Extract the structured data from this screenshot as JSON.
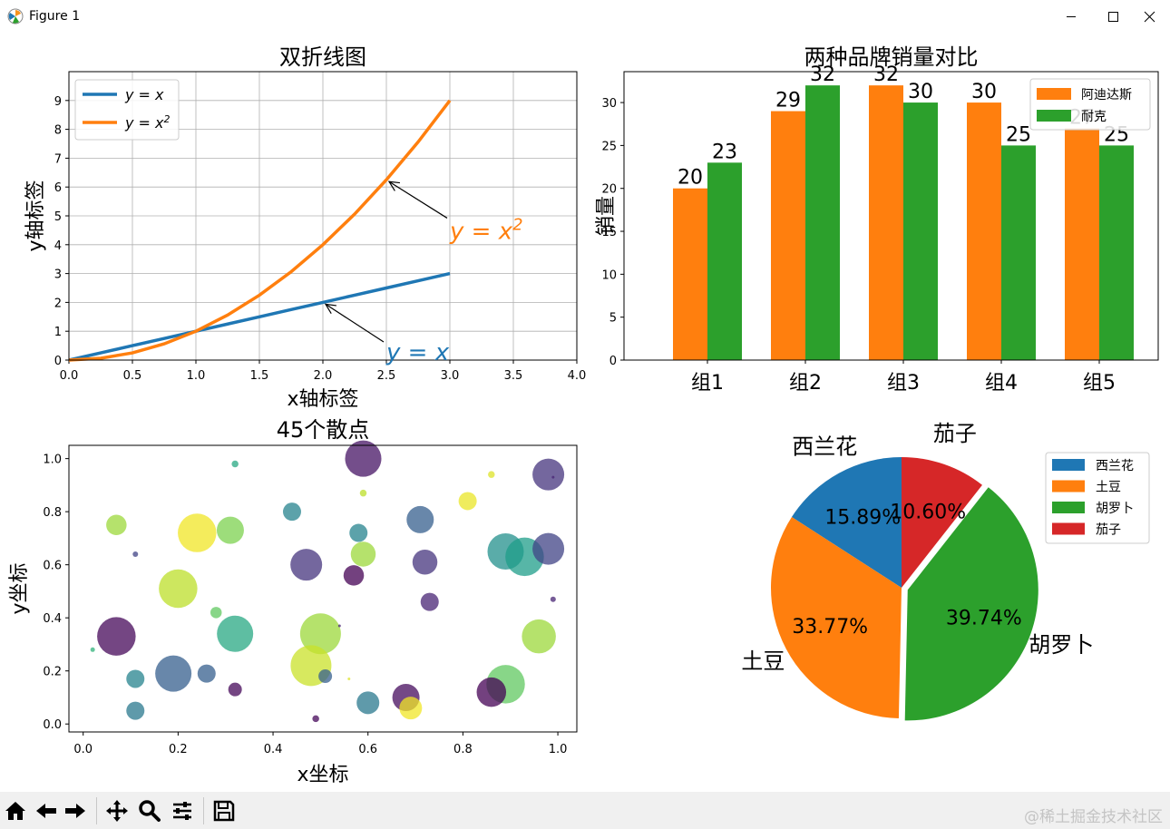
{
  "window": {
    "title": "Figure 1",
    "icons": [
      "matplotlib-logo-icon",
      "minimize-icon",
      "maximize-icon",
      "close-icon"
    ]
  },
  "toolbar": {
    "icons": [
      "home-icon",
      "back-icon",
      "forward-icon",
      "pan-icon",
      "zoom-icon",
      "configure-subplots-icon",
      "save-icon"
    ]
  },
  "watermark": "@稀土掘金技术社区",
  "chart_data": [
    {
      "type": "line",
      "title": "双折线图",
      "xlabel": "x轴标签",
      "ylabel": "y轴标签",
      "xlim": [
        0,
        4
      ],
      "ylim": [
        0,
        10
      ],
      "xticks": [
        "0.0",
        "0.5",
        "1.0",
        "1.5",
        "2.0",
        "2.5",
        "3.0",
        "3.5",
        "4.0"
      ],
      "yticks": [
        "0",
        "1",
        "2",
        "3",
        "4",
        "5",
        "6",
        "7",
        "8",
        "9"
      ],
      "grid": true,
      "legend": "top-left",
      "x": [
        0,
        0.25,
        0.5,
        0.75,
        1,
        1.25,
        1.5,
        1.75,
        2,
        2.25,
        2.5,
        2.75,
        3
      ],
      "series": [
        {
          "name": "y = x",
          "legend_label": "y = x",
          "color": "#1f77b4",
          "values": [
            0,
            0.25,
            0.5,
            0.75,
            1,
            1.25,
            1.5,
            1.75,
            2,
            2.25,
            2.5,
            2.75,
            3
          ]
        },
        {
          "name": "y = x²",
          "legend_label": "y = x²",
          "color": "#ff7f0e",
          "values": [
            0,
            0.0625,
            0.25,
            0.5625,
            1,
            1.5625,
            2.25,
            3.0625,
            4,
            5.0625,
            6.25,
            7.5625,
            9
          ]
        }
      ],
      "annotations": [
        {
          "text": "y = x",
          "color": "#1f77b4",
          "point": [
            2,
            2
          ],
          "text_at": [
            2.5,
            0
          ]
        },
        {
          "text": "y = x²",
          "color": "#ff7f0e",
          "point": [
            2.5,
            6.25
          ],
          "text_at": [
            3,
            4.2
          ]
        }
      ]
    },
    {
      "type": "bar",
      "title": "两种品牌销量对比",
      "xlabel": "",
      "ylabel": "销量",
      "ylim": [
        0,
        33.6
      ],
      "yticks": [
        "0",
        "5",
        "10",
        "15",
        "20",
        "25",
        "30"
      ],
      "categories": [
        "组1",
        "组2",
        "组3",
        "组4",
        "组5"
      ],
      "legend": "top-right",
      "series": [
        {
          "name": "阿迪达斯",
          "color": "#ff7f0e",
          "values": [
            20,
            29,
            32,
            30,
            27
          ]
        },
        {
          "name": "耐克",
          "color": "#2ca02c",
          "values": [
            23,
            32,
            30,
            25,
            25
          ]
        }
      ]
    },
    {
      "type": "scatter",
      "title": "45个散点",
      "xlabel": "x坐标",
      "ylabel": "y坐标",
      "xlim": [
        -0.03,
        1.04
      ],
      "ylim": [
        -0.03,
        1.05
      ],
      "xticks": [
        "0.0",
        "0.2",
        "0.4",
        "0.6",
        "0.8",
        "1.0"
      ],
      "yticks": [
        "0.0",
        "0.2",
        "0.4",
        "0.6",
        "0.8",
        "1.0"
      ],
      "grid": false,
      "colormap": "viridis",
      "points": [
        {
          "x": 0.59,
          "y": 1.0,
          "size": 0.8,
          "c": 0.05
        },
        {
          "x": 0.98,
          "y": 0.94,
          "size": 0.7,
          "c": 0.15
        },
        {
          "x": 0.32,
          "y": 0.98,
          "size": 0.15,
          "c": 0.6
        },
        {
          "x": 0.86,
          "y": 0.94,
          "size": 0.15,
          "c": 0.95
        },
        {
          "x": 0.59,
          "y": 0.87,
          "size": 0.15,
          "c": 0.9
        },
        {
          "x": 0.81,
          "y": 0.84,
          "size": 0.4,
          "c": 0.97
        },
        {
          "x": 0.44,
          "y": 0.8,
          "size": 0.4,
          "c": 0.45
        },
        {
          "x": 0.71,
          "y": 0.77,
          "size": 0.6,
          "c": 0.3
        },
        {
          "x": 0.07,
          "y": 0.75,
          "size": 0.45,
          "c": 0.85
        },
        {
          "x": 0.24,
          "y": 0.72,
          "size": 0.85,
          "c": 0.98
        },
        {
          "x": 0.31,
          "y": 0.73,
          "size": 0.6,
          "c": 0.8
        },
        {
          "x": 0.58,
          "y": 0.72,
          "size": 0.4,
          "c": 0.45
        },
        {
          "x": 0.89,
          "y": 0.65,
          "size": 0.8,
          "c": 0.5
        },
        {
          "x": 0.93,
          "y": 0.63,
          "size": 0.85,
          "c": 0.55
        },
        {
          "x": 0.98,
          "y": 0.66,
          "size": 0.7,
          "c": 0.2
        },
        {
          "x": 0.11,
          "y": 0.64,
          "size": 0.12,
          "c": 0.2
        },
        {
          "x": 0.59,
          "y": 0.64,
          "size": 0.55,
          "c": 0.85
        },
        {
          "x": 0.47,
          "y": 0.6,
          "size": 0.7,
          "c": 0.15
        },
        {
          "x": 0.72,
          "y": 0.61,
          "size": 0.55,
          "c": 0.15
        },
        {
          "x": 0.57,
          "y": 0.56,
          "size": 0.45,
          "c": 0.0
        },
        {
          "x": 0.2,
          "y": 0.51,
          "size": 0.85,
          "c": 0.9
        },
        {
          "x": 0.73,
          "y": 0.46,
          "size": 0.4,
          "c": 0.1
        },
        {
          "x": 0.99,
          "y": 0.47,
          "size": 0.12,
          "c": 0.1
        },
        {
          "x": 0.28,
          "y": 0.42,
          "size": 0.25,
          "c": 0.75
        },
        {
          "x": 0.07,
          "y": 0.33,
          "size": 0.85,
          "c": 0.02
        },
        {
          "x": 0.32,
          "y": 0.34,
          "size": 0.8,
          "c": 0.6
        },
        {
          "x": 0.5,
          "y": 0.34,
          "size": 0.9,
          "c": 0.85
        },
        {
          "x": 0.96,
          "y": 0.33,
          "size": 0.75,
          "c": 0.85
        },
        {
          "x": 0.02,
          "y": 0.28,
          "size": 0.1,
          "c": 0.65
        },
        {
          "x": 0.48,
          "y": 0.22,
          "size": 0.9,
          "c": 0.92
        },
        {
          "x": 0.19,
          "y": 0.19,
          "size": 0.8,
          "c": 0.3
        },
        {
          "x": 0.26,
          "y": 0.19,
          "size": 0.4,
          "c": 0.3
        },
        {
          "x": 0.11,
          "y": 0.17,
          "size": 0.4,
          "c": 0.45
        },
        {
          "x": 0.51,
          "y": 0.18,
          "size": 0.3,
          "c": 0.3
        },
        {
          "x": 0.89,
          "y": 0.15,
          "size": 0.85,
          "c": 0.75
        },
        {
          "x": 0.32,
          "y": 0.13,
          "size": 0.3,
          "c": 0.02
        },
        {
          "x": 0.86,
          "y": 0.12,
          "size": 0.65,
          "c": 0.0
        },
        {
          "x": 0.68,
          "y": 0.1,
          "size": 0.6,
          "c": 0.03
        },
        {
          "x": 0.6,
          "y": 0.08,
          "size": 0.5,
          "c": 0.4
        },
        {
          "x": 0.69,
          "y": 0.06,
          "size": 0.5,
          "c": 0.98
        },
        {
          "x": 0.11,
          "y": 0.05,
          "size": 0.4,
          "c": 0.4
        },
        {
          "x": 0.49,
          "y": 0.02,
          "size": 0.15,
          "c": 0.02
        },
        {
          "x": 0.56,
          "y": 0.17,
          "size": 0.05,
          "c": 0.95
        },
        {
          "x": 0.54,
          "y": 0.37,
          "size": 0.05,
          "c": 0.1
        },
        {
          "x": 0.99,
          "y": 0.93,
          "size": 0.05,
          "c": 0.1
        }
      ]
    },
    {
      "type": "pie",
      "title": "",
      "legend": "top-right",
      "slices": [
        {
          "label": "西兰花",
          "value": 15.89,
          "pct": "15.89%",
          "color": "#1f77b4",
          "explode": 0
        },
        {
          "label": "土豆",
          "value": 33.77,
          "pct": "33.77%",
          "color": "#ff7f0e",
          "explode": 0
        },
        {
          "label": "胡罗卜",
          "value": 39.74,
          "pct": "39.74%",
          "color": "#2ca02c",
          "explode": 0.05
        },
        {
          "label": "茄子",
          "value": 10.6,
          "pct": "10.60%",
          "color": "#d62728",
          "explode": 0
        }
      ]
    }
  ]
}
